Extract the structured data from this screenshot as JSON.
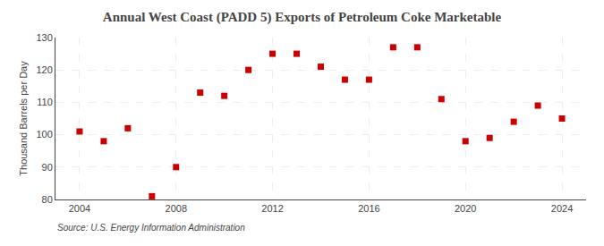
{
  "chart_data": {
    "type": "scatter",
    "title": "Annual West Coast (PADD 5) Exports of Petroleum Coke Marketable",
    "ylabel": "Thousand Barrels per Day",
    "annotation": "Source: U.S. Energy Information Administration",
    "x": [
      2004,
      2005,
      2006,
      2007,
      2008,
      2009,
      2010,
      2011,
      2012,
      2013,
      2014,
      2015,
      2016,
      2017,
      2018,
      2019,
      2020,
      2021,
      2022,
      2023,
      2024
    ],
    "values": [
      101,
      98,
      102,
      81,
      90,
      113,
      112,
      120,
      125,
      125,
      121,
      117,
      117,
      127,
      127,
      111,
      98,
      99,
      104,
      109,
      105
    ],
    "color": "#cc0000",
    "marker": "square",
    "xlim": [
      2003,
      2025
    ],
    "xticks": [
      2004,
      2008,
      2012,
      2016,
      2020,
      2024
    ],
    "ylim": [
      80,
      130
    ],
    "yticks": [
      80,
      90,
      100,
      110,
      120,
      130
    ],
    "grid": true
  }
}
